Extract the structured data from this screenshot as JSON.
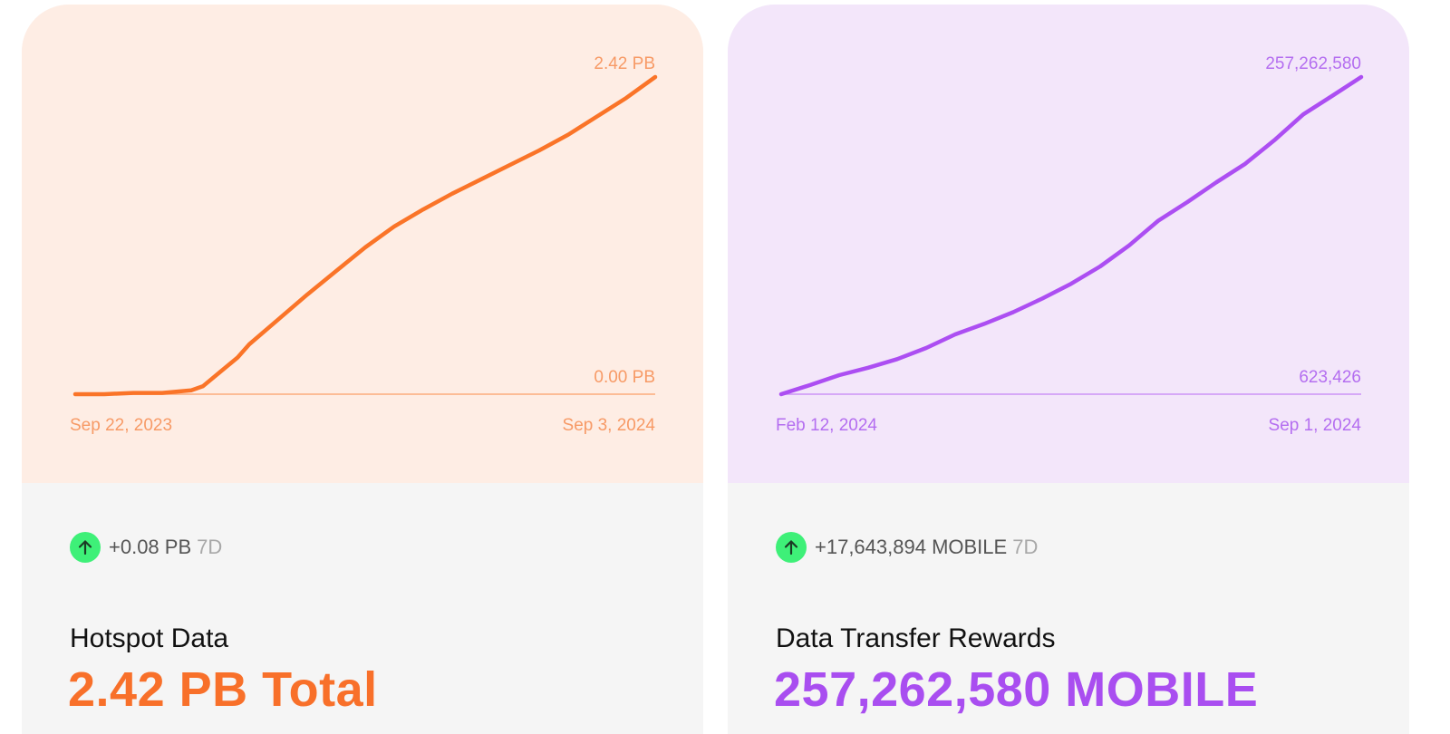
{
  "cards": [
    {
      "change": "+0.08 PB",
      "period": "7D",
      "title": "Hotspot Data",
      "total": "2.42 PB Total",
      "color": "#fa7428",
      "total_color": "#f8702a",
      "label_color": "#f79a66"
    },
    {
      "change": "+17,643,894 MOBILE",
      "period": "7D",
      "title": "Data Transfer Rewards",
      "total": "257,262,580 MOBILE",
      "color": "#ac4ef2",
      "total_color": "#a94ef0",
      "label_color": "#b46ef0"
    }
  ],
  "chart_data": [
    {
      "type": "line",
      "title": "Hotspot Data",
      "unit": "PB",
      "x_start_label": "Sep 22, 2023",
      "x_end_label": "Sep 3, 2024",
      "y_max_label": "2.42 PB",
      "y_min_label": "0.00 PB",
      "x": [
        0,
        0.05,
        0.1,
        0.15,
        0.2,
        0.22,
        0.25,
        0.28,
        0.3,
        0.35,
        0.4,
        0.45,
        0.5,
        0.55,
        0.6,
        0.65,
        0.7,
        0.75,
        0.8,
        0.85,
        0.9,
        0.95,
        1
      ],
      "values": [
        0.0,
        0.0,
        0.01,
        0.01,
        0.03,
        0.06,
        0.17,
        0.28,
        0.38,
        0.57,
        0.76,
        0.94,
        1.12,
        1.28,
        1.41,
        1.53,
        1.64,
        1.75,
        1.86,
        1.98,
        2.12,
        2.26,
        2.42
      ],
      "ylim": [
        0.0,
        2.42
      ]
    },
    {
      "type": "line",
      "title": "Data Transfer Rewards",
      "unit": "MOBILE",
      "x_start_label": "Feb 12, 2024",
      "x_end_label": "Sep 1, 2024",
      "y_max_label": "257,262,580",
      "y_min_label": "623,426",
      "x": [
        0,
        0.05,
        0.1,
        0.15,
        0.2,
        0.25,
        0.3,
        0.35,
        0.4,
        0.45,
        0.5,
        0.55,
        0.6,
        0.65,
        0.7,
        0.75,
        0.8,
        0.85,
        0.9,
        0.95,
        1
      ],
      "values": [
        623426,
        8000000,
        16000000,
        22000000,
        29000000,
        38000000,
        49000000,
        57500000,
        67000000,
        78000000,
        90000000,
        104000000,
        121000000,
        141000000,
        156000000,
        172000000,
        187000000,
        206000000,
        227000000,
        242000000,
        257262580
      ],
      "ylim": [
        623426,
        257262580
      ]
    }
  ]
}
